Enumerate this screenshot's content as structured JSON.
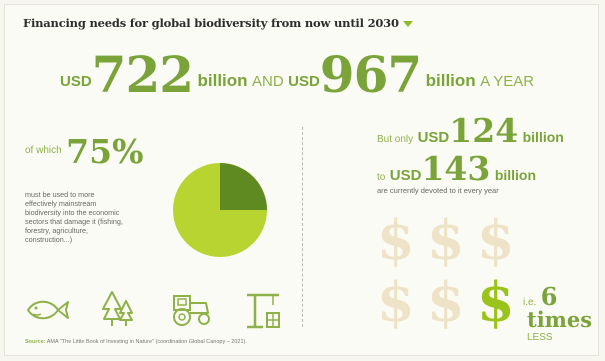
{
  "title": "Financing needs for global biodiversity from now until 2030",
  "headline": {
    "usd1": "USD",
    "amount1": "722",
    "unit1": "billion",
    "and": "AND",
    "usd2": "USD",
    "amount2": "967",
    "unit2": "billion",
    "suffix": "A YEAR"
  },
  "share": {
    "prefix": "of which",
    "percent": "75%",
    "fraction": 0.75,
    "description": "must be used to more effectively mainstream biodiversity into the economic sectors that damage it (fishing, forestry, agriculture, construction...)"
  },
  "current": {
    "prefix": "But only",
    "usd1": "USD",
    "amount1": "124",
    "unit1": "billion",
    "to": "to",
    "usd2": "USD",
    "amount2": "143",
    "unit2": "billion",
    "note": "are currently devoted to it every year"
  },
  "ratio": {
    "ie": "i.e.",
    "n": "6",
    "times": "times",
    "less": "LESS"
  },
  "dollar_symbol": "$",
  "icons": [
    "fish-icon",
    "forest-icon",
    "tractor-icon",
    "construction-crane-icon"
  ],
  "source": {
    "label": "Source:",
    "text": "AMA \"The Little Book of Investing in Nature\" (coordination Global Canopy – 2021)."
  },
  "colors": {
    "accent_green": "#7aa33a",
    "pie_light": "#b8d430",
    "pie_dark": "#5f8a22",
    "dollar_faded": "#efe3c7",
    "dollar_highlight": "#9ac41c"
  }
}
